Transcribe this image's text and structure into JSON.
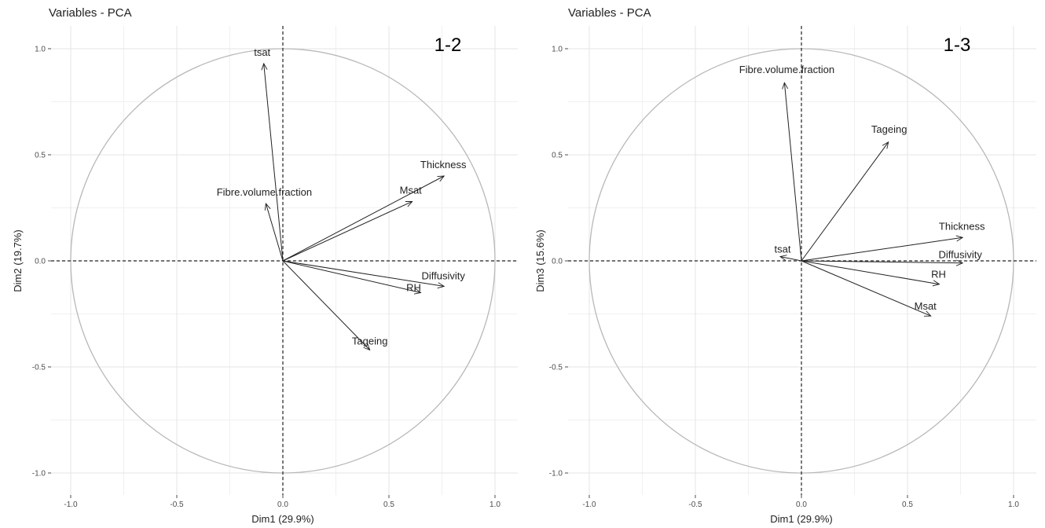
{
  "chart_data": [
    {
      "type": "scatter",
      "subtype": "pca-variable-correlation-circle",
      "title": "Variables - PCA",
      "panel_tag": "1-2",
      "xlabel": "Dim1 (29.9%)",
      "ylabel": "Dim2 (19.7%)",
      "xlim": [
        -1.05,
        1.05
      ],
      "ylim": [
        -1.05,
        1.05
      ],
      "x_ticks": [
        "-1.0",
        "-0.5",
        "0.0",
        "0.5",
        "1.0"
      ],
      "y_ticks": [
        "-1.0",
        "-0.5",
        "0.0",
        "0.5",
        "1.0"
      ],
      "grid": true,
      "variables": [
        {
          "name": "tsat",
          "x": -0.09,
          "y": 0.93
        },
        {
          "name": "Fibre.volume.fraction",
          "x": -0.08,
          "y": 0.27
        },
        {
          "name": "Thickness",
          "x": 0.76,
          "y": 0.4
        },
        {
          "name": "Msat",
          "x": 0.61,
          "y": 0.28
        },
        {
          "name": "Diffusivity",
          "x": 0.76,
          "y": -0.12
        },
        {
          "name": "RH",
          "x": 0.65,
          "y": -0.15
        },
        {
          "name": "Tageing",
          "x": 0.41,
          "y": -0.42
        }
      ]
    },
    {
      "type": "scatter",
      "subtype": "pca-variable-correlation-circle",
      "title": "Variables - PCA",
      "panel_tag": "1-3",
      "xlabel": "Dim1 (29.9%)",
      "ylabel": "Dim3 (15.6%)",
      "xlim": [
        -1.05,
        1.05
      ],
      "ylim": [
        -1.05,
        1.05
      ],
      "x_ticks": [
        "-1.0",
        "-0.5",
        "0.0",
        "0.5",
        "1.0"
      ],
      "y_ticks": [
        "-1.0",
        "-0.5",
        "0.0",
        "0.5",
        "1.0"
      ],
      "grid": true,
      "variables": [
        {
          "name": "Fibre.volume.fraction",
          "x": -0.08,
          "y": 0.84
        },
        {
          "name": "Tageing",
          "x": 0.41,
          "y": 0.56
        },
        {
          "name": "tsat",
          "x": -0.1,
          "y": 0.02
        },
        {
          "name": "Thickness",
          "x": 0.76,
          "y": 0.11
        },
        {
          "name": "Diffusivity",
          "x": 0.76,
          "y": -0.01
        },
        {
          "name": "RH",
          "x": 0.65,
          "y": -0.11
        },
        {
          "name": "Msat",
          "x": 0.61,
          "y": -0.26
        }
      ]
    }
  ]
}
